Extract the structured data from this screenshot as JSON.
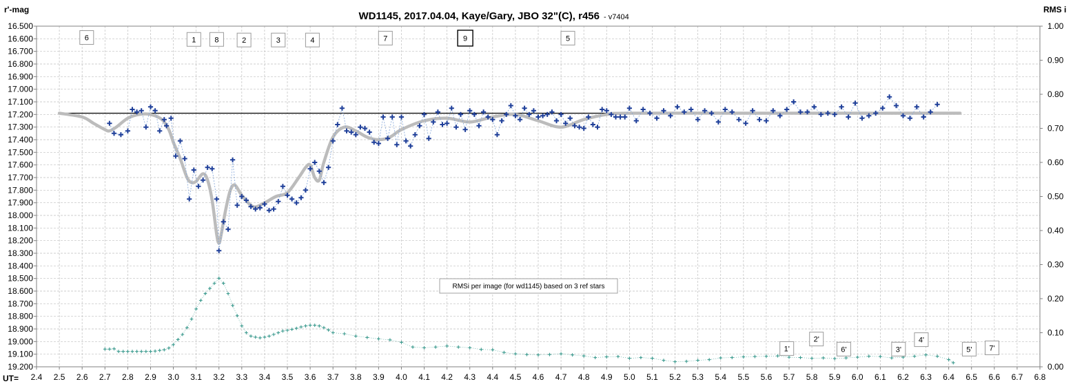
{
  "chart_data": {
    "type": "scatter",
    "title": "WD1145, 2017.04.04, Kaye/Gary, JBO 32\"(C), r456",
    "version": "- v7404",
    "ylabel_left": "r'-mag",
    "ylabel_right": "RMS i",
    "xlabel": "UT=",
    "xlim": [
      2.4,
      6.8
    ],
    "x_tick_step": 0.1,
    "ylim_left": [
      16.5,
      19.2
    ],
    "y_left_tick_step": 0.1,
    "y_left_inverted": true,
    "ylim_right": [
      0.0,
      1.0
    ],
    "y_right_tick_step": 0.1,
    "grid": true,
    "note": "RMSi per image (for wd1145) based on 3 ref stars",
    "reference_mag": 17.19,
    "colors": {
      "data": "#1f3f99",
      "data_line": "#7fa3d8",
      "model": "#bcbcbc",
      "reference": "#000000",
      "rms": "#3b9a8e",
      "grid": "#bfbfbf"
    },
    "markers": [
      {
        "label": "6",
        "x": 2.62,
        "mag": 16.59
      },
      {
        "label": "1",
        "x": 3.09,
        "mag": 16.605
      },
      {
        "label": "8",
        "x": 3.19,
        "mag": 16.605
      },
      {
        "label": "2",
        "x": 3.31,
        "mag": 16.61
      },
      {
        "label": "3",
        "x": 3.46,
        "mag": 16.61
      },
      {
        "label": "4",
        "x": 3.61,
        "mag": 16.61
      },
      {
        "label": "7",
        "x": 3.93,
        "mag": 16.595
      },
      {
        "label": "9",
        "x": 4.28,
        "mag": 16.595,
        "bold": true
      },
      {
        "label": "5",
        "x": 4.73,
        "mag": 16.595
      },
      {
        "label": "1'",
        "x": 5.69,
        "mag": 19.055
      },
      {
        "label": "2'",
        "x": 5.82,
        "mag": 18.98
      },
      {
        "label": "6'",
        "x": 5.94,
        "mag": 19.06
      },
      {
        "label": "3'",
        "x": 6.18,
        "mag": 19.06
      },
      {
        "label": "4'",
        "x": 6.28,
        "mag": 18.985
      },
      {
        "label": "5'",
        "x": 6.49,
        "mag": 19.06
      },
      {
        "label": "7'",
        "x": 6.59,
        "mag": 19.05
      }
    ],
    "model_curve": {
      "x": [
        2.5,
        2.6,
        2.65,
        2.7,
        2.72,
        2.75,
        2.8,
        2.85,
        2.9,
        2.95,
        2.98,
        3.0,
        3.03,
        3.06,
        3.08,
        3.1,
        3.13,
        3.15,
        3.17,
        3.19,
        3.2,
        3.21,
        3.23,
        3.25,
        3.27,
        3.3,
        3.35,
        3.4,
        3.45,
        3.5,
        3.55,
        3.58,
        3.6,
        3.62,
        3.64,
        3.66,
        3.7,
        3.75,
        3.8,
        3.85,
        3.9,
        3.95,
        4.0,
        4.1,
        4.2,
        4.3,
        4.4,
        4.5,
        4.6,
        4.7,
        4.8,
        4.9,
        5.0,
        5.5,
        6.0,
        6.45
      ],
      "mag": [
        17.19,
        17.22,
        17.27,
        17.32,
        17.33,
        17.3,
        17.23,
        17.2,
        17.2,
        17.24,
        17.32,
        17.42,
        17.55,
        17.7,
        17.74,
        17.73,
        17.67,
        17.72,
        17.88,
        18.15,
        18.22,
        18.15,
        17.95,
        17.8,
        17.76,
        17.84,
        17.93,
        17.9,
        17.85,
        17.82,
        17.7,
        17.62,
        17.6,
        17.7,
        17.72,
        17.58,
        17.38,
        17.3,
        17.33,
        17.38,
        17.4,
        17.38,
        17.32,
        17.25,
        17.23,
        17.26,
        17.22,
        17.2,
        17.25,
        17.3,
        17.24,
        17.2,
        17.19,
        17.19,
        17.19,
        17.19
      ]
    },
    "mag_data": {
      "x": [
        2.72,
        2.74,
        2.77,
        2.8,
        2.82,
        2.84,
        2.86,
        2.88,
        2.9,
        2.92,
        2.94,
        2.96,
        2.97,
        2.99,
        3.01,
        3.03,
        3.05,
        3.07,
        3.09,
        3.11,
        3.13,
        3.15,
        3.17,
        3.19,
        3.2,
        3.22,
        3.24,
        3.26,
        3.28,
        3.3,
        3.32,
        3.34,
        3.36,
        3.38,
        3.4,
        3.42,
        3.44,
        3.46,
        3.48,
        3.5,
        3.52,
        3.54,
        3.56,
        3.58,
        3.6,
        3.62,
        3.64,
        3.66,
        3.68,
        3.7,
        3.72,
        3.74,
        3.76,
        3.78,
        3.8,
        3.82,
        3.84,
        3.86,
        3.88,
        3.9,
        3.92,
        3.94,
        3.96,
        3.98,
        4.0,
        4.02,
        4.04,
        4.06,
        4.08,
        4.1,
        4.12,
        4.14,
        4.16,
        4.18,
        4.2,
        4.22,
        4.24,
        4.26,
        4.28,
        4.3,
        4.32,
        4.34,
        4.36,
        4.38,
        4.4,
        4.42,
        4.44,
        4.46,
        4.48,
        4.5,
        4.52,
        4.54,
        4.56,
        4.58,
        4.6,
        4.62,
        4.64,
        4.66,
        4.68,
        4.7,
        4.72,
        4.74,
        4.76,
        4.78,
        4.8,
        4.82,
        4.84,
        4.86,
        4.88,
        4.9,
        4.92,
        4.94,
        4.96,
        4.98,
        5.0,
        5.03,
        5.06,
        5.09,
        5.12,
        5.15,
        5.18,
        5.21,
        5.24,
        5.27,
        5.3,
        5.33,
        5.36,
        5.39,
        5.42,
        5.45,
        5.48,
        5.51,
        5.54,
        5.57,
        5.6,
        5.63,
        5.66,
        5.69,
        5.72,
        5.75,
        5.78,
        5.81,
        5.84,
        5.87,
        5.9,
        5.93,
        5.96,
        5.99,
        6.02,
        6.05,
        6.08,
        6.11,
        6.14,
        6.17,
        6.2,
        6.23,
        6.26,
        6.29,
        6.32,
        6.35,
        6.38,
        6.41
      ],
      "mag": [
        17.27,
        17.35,
        17.36,
        17.33,
        17.16,
        17.18,
        17.17,
        17.3,
        17.14,
        17.17,
        17.33,
        17.24,
        17.29,
        17.23,
        17.53,
        17.41,
        17.55,
        17.87,
        17.64,
        17.77,
        17.72,
        17.62,
        17.63,
        17.87,
        18.28,
        18.05,
        18.11,
        17.56,
        17.92,
        17.85,
        17.88,
        17.93,
        17.95,
        17.94,
        17.91,
        17.96,
        17.95,
        17.89,
        17.77,
        17.84,
        17.87,
        17.9,
        17.86,
        17.8,
        17.63,
        17.58,
        17.65,
        17.74,
        17.62,
        17.41,
        17.28,
        17.15,
        17.33,
        17.34,
        17.36,
        17.3,
        17.31,
        17.34,
        17.42,
        17.43,
        17.22,
        17.39,
        17.22,
        17.44,
        17.22,
        17.41,
        17.45,
        17.36,
        17.29,
        17.2,
        17.39,
        17.26,
        17.18,
        17.28,
        17.27,
        17.15,
        17.3,
        17.2,
        17.32,
        17.17,
        17.2,
        17.29,
        17.18,
        17.22,
        17.24,
        17.36,
        17.25,
        17.2,
        17.13,
        17.21,
        17.24,
        17.15,
        17.2,
        17.17,
        17.22,
        17.21,
        17.2,
        17.18,
        17.25,
        17.2,
        17.27,
        17.23,
        17.29,
        17.3,
        17.31,
        17.22,
        17.28,
        17.3,
        17.16,
        17.17,
        17.2,
        17.22,
        17.22,
        17.22,
        17.15,
        17.25,
        17.16,
        17.19,
        17.23,
        17.17,
        17.21,
        17.14,
        17.18,
        17.16,
        17.24,
        17.17,
        17.19,
        17.26,
        17.16,
        17.18,
        17.24,
        17.27,
        17.17,
        17.24,
        17.25,
        17.17,
        17.21,
        17.16,
        17.1,
        17.18,
        17.18,
        17.14,
        17.2,
        17.19,
        17.2,
        17.14,
        17.22,
        17.11,
        17.23,
        17.21,
        17.19,
        17.15,
        17.06,
        17.13,
        17.21,
        17.23,
        17.14,
        17.22,
        17.18,
        17.12
      ],
      "color": "#1f3f99"
    },
    "rms_series": {
      "x": [
        2.7,
        2.72,
        2.74,
        2.76,
        2.78,
        2.8,
        2.82,
        2.84,
        2.86,
        2.88,
        2.9,
        2.92,
        2.94,
        2.96,
        2.98,
        3.0,
        3.02,
        3.04,
        3.06,
        3.08,
        3.1,
        3.12,
        3.14,
        3.16,
        3.18,
        3.2,
        3.22,
        3.24,
        3.26,
        3.28,
        3.3,
        3.32,
        3.34,
        3.36,
        3.38,
        3.4,
        3.42,
        3.44,
        3.46,
        3.48,
        3.5,
        3.52,
        3.54,
        3.56,
        3.58,
        3.6,
        3.62,
        3.64,
        3.66,
        3.68,
        3.7,
        3.75,
        3.8,
        3.85,
        3.9,
        3.95,
        4.0,
        4.05,
        4.1,
        4.15,
        4.2,
        4.25,
        4.3,
        4.35,
        4.4,
        4.45,
        4.5,
        4.55,
        4.6,
        4.65,
        4.7,
        4.75,
        4.8,
        4.85,
        4.9,
        4.95,
        5.0,
        5.05,
        5.1,
        5.15,
        5.2,
        5.25,
        5.3,
        5.35,
        5.4,
        5.45,
        5.5,
        5.55,
        5.6,
        5.65,
        5.7,
        5.75,
        5.8,
        5.85,
        5.9,
        5.95,
        6.0,
        6.05,
        6.1,
        6.15,
        6.2,
        6.25,
        6.3,
        6.35,
        6.4,
        6.42
      ],
      "rms": [
        0.052,
        0.052,
        0.053,
        0.045,
        0.045,
        0.045,
        0.045,
        0.045,
        0.045,
        0.045,
        0.045,
        0.046,
        0.048,
        0.05,
        0.055,
        0.065,
        0.08,
        0.095,
        0.115,
        0.14,
        0.17,
        0.195,
        0.215,
        0.23,
        0.245,
        0.26,
        0.245,
        0.215,
        0.18,
        0.15,
        0.12,
        0.1,
        0.09,
        0.087,
        0.085,
        0.087,
        0.09,
        0.095,
        0.1,
        0.105,
        0.107,
        0.11,
        0.113,
        0.117,
        0.12,
        0.122,
        0.122,
        0.12,
        0.115,
        0.108,
        0.1,
        0.097,
        0.09,
        0.086,
        0.082,
        0.079,
        0.072,
        0.058,
        0.056,
        0.058,
        0.061,
        0.058,
        0.056,
        0.051,
        0.05,
        0.042,
        0.038,
        0.036,
        0.035,
        0.036,
        0.038,
        0.035,
        0.032,
        0.027,
        0.029,
        0.03,
        0.025,
        0.027,
        0.025,
        0.019,
        0.015,
        0.016,
        0.019,
        0.021,
        0.026,
        0.027,
        0.029,
        0.03,
        0.031,
        0.032,
        0.028,
        0.027,
        0.025,
        0.026,
        0.024,
        0.026,
        0.028,
        0.031,
        0.03,
        0.026,
        0.028,
        0.031,
        0.035,
        0.031,
        0.021,
        0.012
      ],
      "color": "#3b9a8e"
    }
  }
}
